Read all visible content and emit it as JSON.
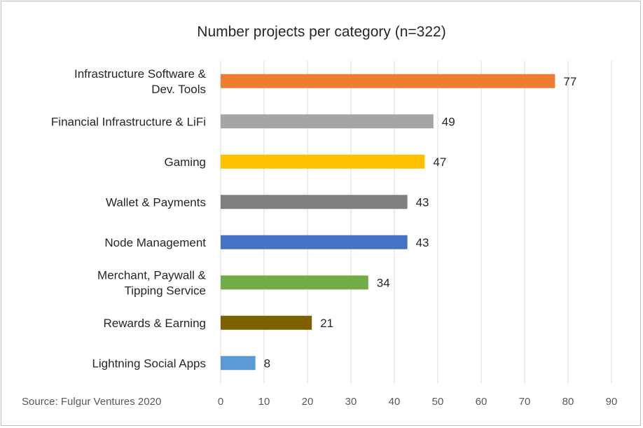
{
  "chart_data": {
    "type": "bar",
    "orientation": "horizontal",
    "title": "Number projects per category (n=322)",
    "source": "Source: Fulgur Ventures 2020",
    "categories": [
      [
        "Infrastructure Software &",
        "Dev. Tools"
      ],
      [
        "Financial Infrastructure & LiFi"
      ],
      [
        "Gaming"
      ],
      [
        "Wallet & Payments"
      ],
      [
        "Node Management"
      ],
      [
        "Merchant, Paywall &",
        "Tipping Service"
      ],
      [
        "Rewards & Earning"
      ],
      [
        "Lightning Social Apps"
      ]
    ],
    "values": [
      77,
      49,
      47,
      43,
      43,
      34,
      21,
      8
    ],
    "colors": [
      "#ed7d31",
      "#a5a5a5",
      "#ffc000",
      "#7f7f7f",
      "#4472c4",
      "#70ad47",
      "#7f6000",
      "#5b9bd5"
    ],
    "xticks": [
      0,
      10,
      20,
      30,
      40,
      50,
      60,
      70,
      80,
      90
    ],
    "xlim": [
      0,
      90
    ],
    "grid": true,
    "legend": "none",
    "data_labels": true
  }
}
